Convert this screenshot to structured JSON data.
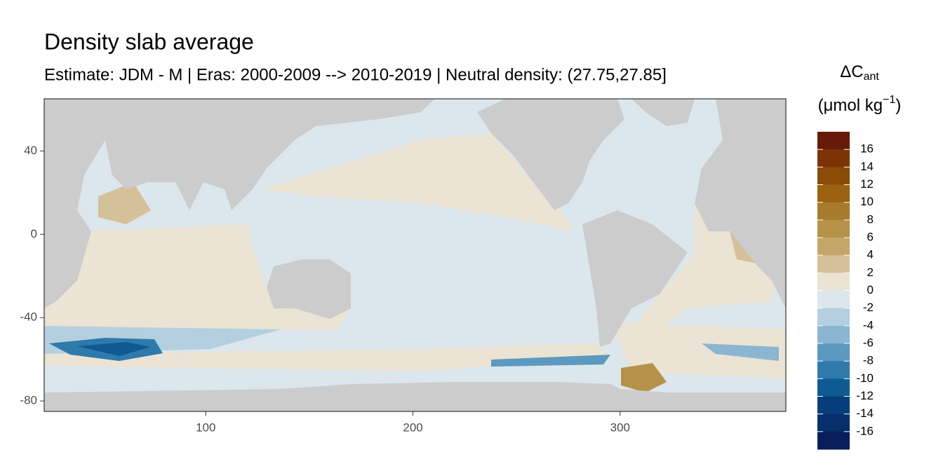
{
  "chart_data": {
    "type": "map",
    "title": "Density slab average",
    "subtitle": "Estimate: JDM - M | Eras: 2000-2009 --> 2010-2019 | Neutral density: (27.75,27.85]",
    "xlim": [
      22,
      380
    ],
    "ylim": [
      -85,
      65
    ],
    "xticks": [
      100,
      200,
      300
    ],
    "yticks": [
      40,
      0,
      -40,
      -80
    ],
    "land_color": "#cccccc",
    "legend": {
      "title": "ΔC",
      "title_sub": "ant",
      "unit_prefix": "(μmol kg",
      "unit_sup": "−1",
      "unit_suffix": ")",
      "breaks": [
        16,
        14,
        12,
        10,
        8,
        6,
        4,
        2,
        0,
        -2,
        -4,
        -6,
        -8,
        -10,
        -12,
        -14,
        -16
      ],
      "colors": [
        "#67190a",
        "#7c3306",
        "#8c4b07",
        "#9a620f",
        "#a87b2c",
        "#b69249",
        "#c4a66b",
        "#d5c199",
        "#ebe3d3",
        "#dce7ed",
        "#b3cfe0",
        "#8bb6d2",
        "#5b99c0",
        "#2f7aab",
        "#0e5b93",
        "#063e7c",
        "#062f6b",
        "#061f5a"
      ]
    }
  }
}
